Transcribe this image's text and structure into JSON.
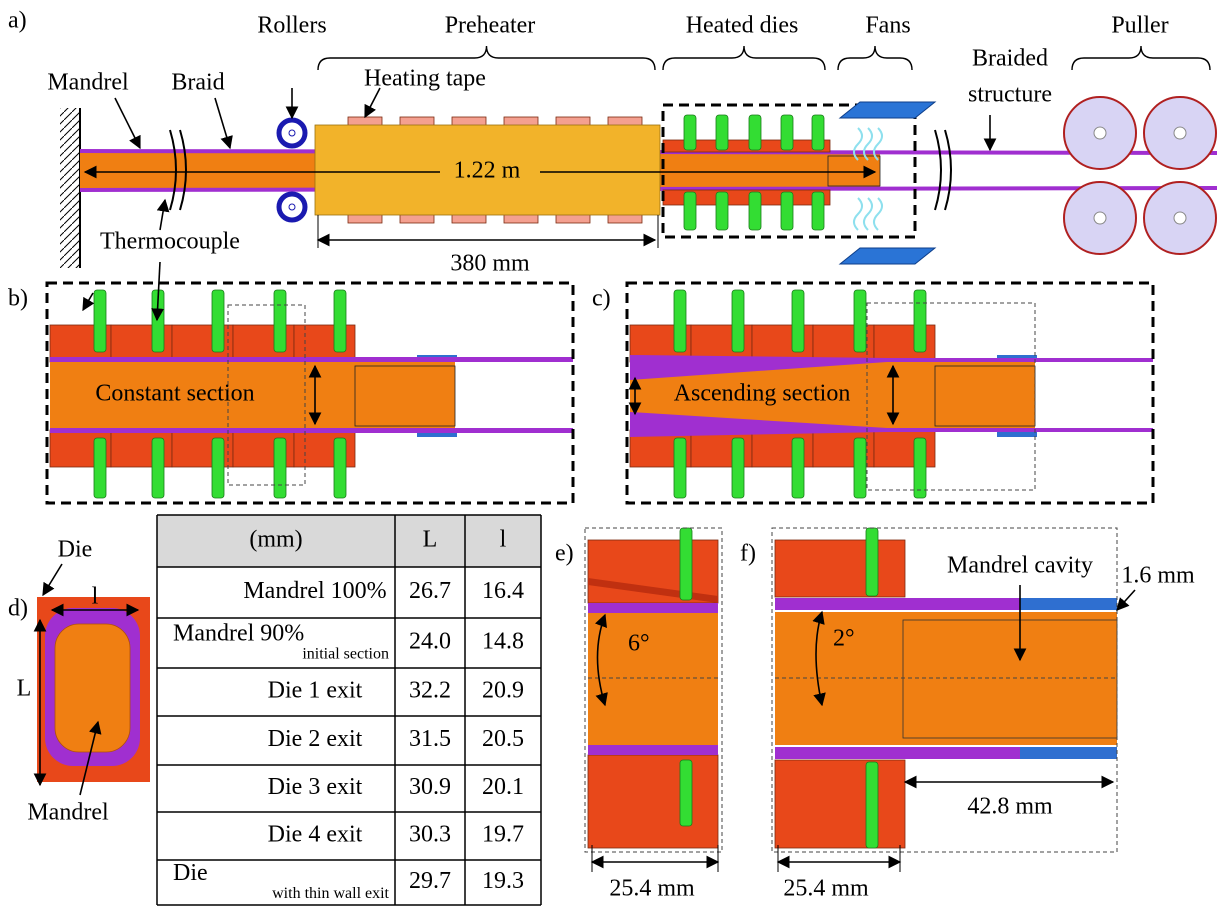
{
  "panel_a": {
    "label": "a)",
    "rollers": "Rollers",
    "preheater": "Preheater",
    "heated_dies": "Heated dies",
    "fans": "Fans",
    "puller": "Puller",
    "mandrel": "Mandrel",
    "braid": "Braid",
    "heating_tape": "Heating tape",
    "braided_structure": [
      "Braided",
      "structure"
    ],
    "length": "1.22 m",
    "thermocouple": "Thermocouple",
    "preheater_length": "380 mm"
  },
  "panel_b": {
    "label": "b)",
    "caption": "Constant section"
  },
  "panel_c": {
    "label": "c)",
    "caption": "Ascending section"
  },
  "panel_d": {
    "label": "d)",
    "die": "Die",
    "width": "l",
    "height": "L",
    "mandrel": "Mandrel"
  },
  "table": {
    "header": [
      "(mm)",
      "L",
      "l"
    ],
    "rows": [
      {
        "name": "Mandrel 100%",
        "L": "26.7",
        "l": "16.4"
      },
      {
        "name": "Mandrel 90%",
        "sub": "initial section",
        "L": "24.0",
        "l": "14.8"
      },
      {
        "name": "Die 1 exit",
        "L": "32.2",
        "l": "20.9"
      },
      {
        "name": "Die 2 exit",
        "L": "31.5",
        "l": "20.5"
      },
      {
        "name": "Die 3 exit",
        "L": "30.9",
        "l": "20.1"
      },
      {
        "name": "Die 4 exit",
        "L": "30.3",
        "l": "19.7"
      },
      {
        "name": "Die",
        "sub": "with thin wall exit",
        "L": "29.7",
        "l": "19.3"
      }
    ]
  },
  "panel_e": {
    "label": "e)",
    "angle": "6°",
    "width": "25.4 mm"
  },
  "panel_f": {
    "label": "f)",
    "angle": "2°",
    "cavity": "Mandrel cavity",
    "wall": "1.6 mm",
    "cavity_length": "42.8 mm",
    "width": "25.4 mm"
  }
}
